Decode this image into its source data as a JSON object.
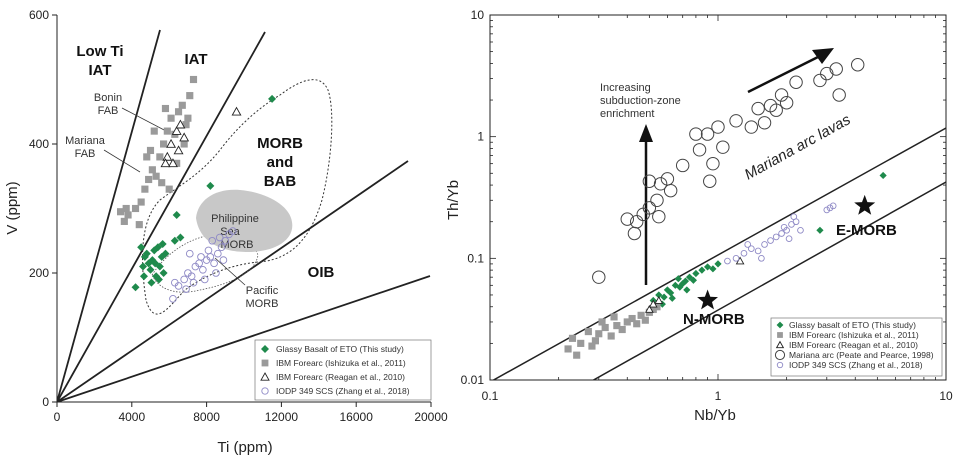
{
  "chart_data": [
    {
      "type": "scatter",
      "xlabel": "Ti (ppm)",
      "ylabel": "V (ppm)",
      "xlim": [
        0,
        20000
      ],
      "ylim": [
        0,
        600
      ],
      "xticks": [
        "0",
        "4000",
        "8000",
        "12000",
        "16000",
        "20000"
      ],
      "yticks": [
        "0",
        "200",
        "400",
        "600"
      ],
      "field_labels": {
        "lowti": [
          "Low Ti",
          "IAT"
        ],
        "iat": "IAT",
        "morb": [
          "MORB",
          "and",
          "BAB"
        ],
        "oib": "OIB",
        "bonin": [
          "Bonin",
          "FAB"
        ],
        "mariana": [
          "Mariana",
          "FAB"
        ],
        "phil": [
          "Philippine",
          "Sea",
          "MORB"
        ],
        "pacific": [
          "Pacific",
          "MORB"
        ]
      },
      "series": [
        {
          "name": "Glassy Basalt of ETO (This study)",
          "marker": "diamond",
          "color": "#1f8a4c",
          "points": [
            [
              4200,
              178
            ],
            [
              4600,
              210
            ],
            [
              4700,
              225
            ],
            [
              4800,
              230
            ],
            [
              4900,
              215
            ],
            [
              5000,
              205
            ],
            [
              5100,
              220
            ],
            [
              5200,
              235
            ],
            [
              5300,
              195
            ],
            [
              5400,
              240
            ],
            [
              5500,
              210
            ],
            [
              5600,
              225
            ],
            [
              5700,
              200
            ],
            [
              5800,
              230
            ],
            [
              4500,
              240
            ],
            [
              4650,
              195
            ],
            [
              5050,
              185
            ],
            [
              5250,
              215
            ],
            [
              5450,
              190
            ],
            [
              5650,
              245
            ],
            [
              6300,
              250
            ],
            [
              6600,
              255
            ],
            [
              6400,
              290
            ],
            [
              8200,
              335
            ],
            [
              11500,
              470
            ]
          ]
        },
        {
          "name": "IBM Forearc (Ishizuka et al., 2011)",
          "marker": "square",
          "color": "#9a9a9a",
          "points": [
            [
              3400,
              295
            ],
            [
              3600,
              280
            ],
            [
              3800,
              290
            ],
            [
              4200,
              300
            ],
            [
              4500,
              310
            ],
            [
              4700,
              330
            ],
            [
              4900,
              345
            ],
            [
              5100,
              360
            ],
            [
              5300,
              350
            ],
            [
              5500,
              380
            ],
            [
              5700,
              400
            ],
            [
              5900,
              420
            ],
            [
              6100,
              440
            ],
            [
              6300,
              415
            ],
            [
              6500,
              450
            ],
            [
              6700,
              460
            ],
            [
              6900,
              430
            ],
            [
              7100,
              475
            ],
            [
              7300,
              500
            ],
            [
              5000,
              390
            ],
            [
              5200,
              420
            ],
            [
              4800,
              380
            ],
            [
              5600,
              340
            ],
            [
              6000,
              330
            ],
            [
              6400,
              370
            ],
            [
              6800,
              400
            ],
            [
              7000,
              440
            ],
            [
              4400,
              275
            ],
            [
              3700,
              300
            ],
            [
              5800,
              455
            ]
          ]
        },
        {
          "name": "IBM Forearc (Reagan et al., 2010)",
          "marker": "triangle",
          "color": "#222222",
          "points": [
            [
              5900,
              380
            ],
            [
              6100,
              400
            ],
            [
              6200,
              370
            ],
            [
              6400,
              420
            ],
            [
              6600,
              430
            ],
            [
              6800,
              410
            ],
            [
              5800,
              370
            ],
            [
              6500,
              390
            ],
            [
              9600,
              450
            ]
          ]
        },
        {
          "name": "IODP 349 SCS (Zhang et al., 2018)",
          "marker": "circle",
          "color": "#8f8ac6",
          "points": [
            [
              6500,
              180
            ],
            [
              6800,
              190
            ],
            [
              7000,
              200
            ],
            [
              7200,
              195
            ],
            [
              7400,
              210
            ],
            [
              7600,
              215
            ],
            [
              7800,
              205
            ],
            [
              8000,
              220
            ],
            [
              8200,
              225
            ],
            [
              8400,
              215
            ],
            [
              8600,
              230
            ],
            [
              8800,
              240
            ],
            [
              9000,
              250
            ],
            [
              9200,
              260
            ],
            [
              6900,
              175
            ],
            [
              7300,
              185
            ],
            [
              7700,
              225
            ],
            [
              8100,
              235
            ],
            [
              8500,
              200
            ],
            [
              8900,
              220
            ],
            [
              9400,
              265
            ],
            [
              6200,
              160
            ],
            [
              6300,
              185
            ],
            [
              7100,
              230
            ],
            [
              7900,
              190
            ],
            [
              8300,
              250
            ],
            [
              8700,
              255
            ]
          ]
        }
      ],
      "legend": "bottom-right"
    },
    {
      "type": "scatter",
      "xlabel": "Nb/Yb",
      "ylabel": "Th/Yb",
      "xscale": "log",
      "yscale": "log",
      "xlim": [
        0.1,
        10
      ],
      "ylim": [
        0.01,
        10
      ],
      "xticks": [
        "0.1",
        "1",
        "10"
      ],
      "yticks": [
        "0.01",
        "0.1",
        "1",
        "10"
      ],
      "annotations": {
        "subduction": [
          "Increasing",
          "subduction-zone",
          "enrichment"
        ],
        "mariana_arc": "Mariana arc lavas",
        "nmorb": "N-MORB",
        "emorb": "E-MORB"
      },
      "reference_points": [
        {
          "name": "N-MORB",
          "x": 0.9,
          "y": 0.045
        },
        {
          "name": "E-MORB",
          "x": 4.4,
          "y": 0.27
        }
      ],
      "series": [
        {
          "name": "Glassy basalt of ETO (This study)",
          "marker": "diamond",
          "color": "#1f8a4c",
          "points": [
            [
              0.52,
              0.045
            ],
            [
              0.55,
              0.05
            ],
            [
              0.58,
              0.048
            ],
            [
              0.6,
              0.055
            ],
            [
              0.62,
              0.052
            ],
            [
              0.65,
              0.06
            ],
            [
              0.68,
              0.058
            ],
            [
              0.7,
              0.062
            ],
            [
              0.72,
              0.065
            ],
            [
              0.75,
              0.07
            ],
            [
              0.78,
              0.066
            ],
            [
              0.8,
              0.075
            ],
            [
              0.85,
              0.08
            ],
            [
              0.9,
              0.085
            ],
            [
              0.95,
              0.082
            ],
            [
              1.0,
              0.09
            ],
            [
              0.67,
              0.068
            ],
            [
              0.73,
              0.055
            ],
            [
              0.63,
              0.047
            ],
            [
              0.57,
              0.042
            ],
            [
              2.8,
              0.17
            ],
            [
              5.3,
              0.48
            ]
          ]
        },
        {
          "name": "IBM Forearc (Ishizuka et al., 2011)",
          "marker": "square",
          "color": "#9a9a9a",
          "points": [
            [
              0.22,
              0.018
            ],
            [
              0.23,
              0.022
            ],
            [
              0.25,
              0.02
            ],
            [
              0.27,
              0.025
            ],
            [
              0.29,
              0.021
            ],
            [
              0.3,
              0.024
            ],
            [
              0.32,
              0.027
            ],
            [
              0.34,
              0.023
            ],
            [
              0.36,
              0.028
            ],
            [
              0.38,
              0.026
            ],
            [
              0.4,
              0.03
            ],
            [
              0.42,
              0.032
            ],
            [
              0.44,
              0.029
            ],
            [
              0.46,
              0.034
            ],
            [
              0.48,
              0.031
            ],
            [
              0.5,
              0.036
            ],
            [
              0.52,
              0.038
            ],
            [
              0.54,
              0.04
            ],
            [
              0.35,
              0.033
            ],
            [
              0.28,
              0.019
            ],
            [
              0.24,
              0.016
            ],
            [
              0.31,
              0.03
            ]
          ]
        },
        {
          "name": "IBM Forearc (Reagan et al., 2010)",
          "marker": "triangle",
          "color": "#222222",
          "points": [
            [
              0.5,
              0.038
            ],
            [
              0.52,
              0.042
            ],
            [
              0.55,
              0.045
            ],
            [
              1.25,
              0.095
            ]
          ]
        },
        {
          "name": "Mariana arc (Peate and Pearce, 1998)",
          "marker": "open-circle-large",
          "color": "#444444",
          "points": [
            [
              0.3,
              0.07
            ],
            [
              0.4,
              0.21
            ],
            [
              0.43,
              0.16
            ],
            [
              0.44,
              0.2
            ],
            [
              0.47,
              0.23
            ],
            [
              0.5,
              0.26
            ],
            [
              0.5,
              0.43
            ],
            [
              0.54,
              0.3
            ],
            [
              0.55,
              0.22
            ],
            [
              0.56,
              0.41
            ],
            [
              0.6,
              0.45
            ],
            [
              0.62,
              0.36
            ],
            [
              0.7,
              0.58
            ],
            [
              0.8,
              1.05
            ],
            [
              0.83,
              0.78
            ],
            [
              0.9,
              1.05
            ],
            [
              0.92,
              0.43
            ],
            [
              0.95,
              0.6
            ],
            [
              1.0,
              1.2
            ],
            [
              1.05,
              0.82
            ],
            [
              1.2,
              1.35
            ],
            [
              1.4,
              1.2
            ],
            [
              1.5,
              1.7
            ],
            [
              1.6,
              1.3
            ],
            [
              1.7,
              1.8
            ],
            [
              1.8,
              1.65
            ],
            [
              1.9,
              2.2
            ],
            [
              2.0,
              1.9
            ],
            [
              2.2,
              2.8
            ],
            [
              2.8,
              2.9
            ],
            [
              3.0,
              3.3
            ],
            [
              3.3,
              3.6
            ],
            [
              3.4,
              2.2
            ],
            [
              4.1,
              3.9
            ]
          ]
        },
        {
          "name": "IODP 349 SCS (Zhang et al., 2018)",
          "marker": "circle",
          "color": "#8f8ac6",
          "points": [
            [
              1.1,
              0.095
            ],
            [
              1.2,
              0.1
            ],
            [
              1.3,
              0.11
            ],
            [
              1.4,
              0.12
            ],
            [
              1.5,
              0.115
            ],
            [
              1.6,
              0.13
            ],
            [
              1.7,
              0.14
            ],
            [
              1.8,
              0.15
            ],
            [
              1.9,
              0.16
            ],
            [
              2.0,
              0.17
            ],
            [
              2.1,
              0.19
            ],
            [
              2.2,
              0.2
            ],
            [
              1.95,
              0.18
            ],
            [
              2.05,
              0.145
            ],
            [
              2.3,
              0.17
            ],
            [
              3.0,
              0.25
            ],
            [
              3.1,
              0.26
            ],
            [
              3.2,
              0.27
            ],
            [
              1.35,
              0.13
            ],
            [
              1.55,
              0.1
            ],
            [
              2.15,
              0.22
            ]
          ]
        }
      ],
      "legend": "bottom-right"
    }
  ]
}
